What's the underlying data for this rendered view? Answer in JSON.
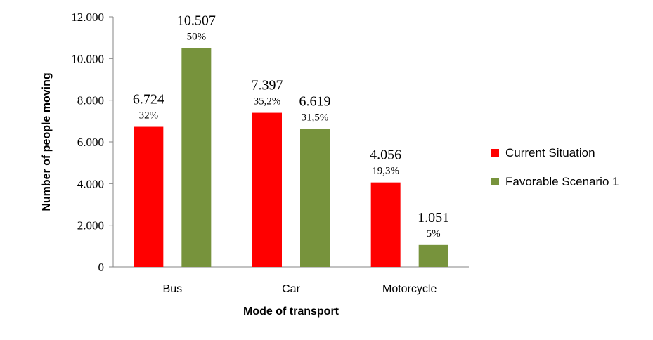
{
  "chart_data": {
    "type": "bar",
    "categories": [
      "Bus",
      "Car",
      "Motorcycle"
    ],
    "series": [
      {
        "name": "Current Situation",
        "color": "#ff0000",
        "values": [
          6724,
          7397,
          4056
        ],
        "value_labels": [
          "6.724",
          "7.397",
          "4.056"
        ],
        "percent_labels": [
          "32%",
          "35,2%",
          "19,3%"
        ]
      },
      {
        "name": "Favorable Scenario 1",
        "color": "#77933c",
        "values": [
          10507,
          6619,
          1051
        ],
        "value_labels": [
          "10.507",
          "6.619",
          "1.051"
        ],
        "percent_labels": [
          "50%",
          "31,5%",
          "5%"
        ]
      }
    ],
    "xlabel": "Mode of transport",
    "ylabel": "Number of people moving",
    "ylim": [
      0,
      12000
    ],
    "yticks": [
      0,
      2000,
      4000,
      6000,
      8000,
      10000,
      12000
    ],
    "ytick_labels": [
      "0",
      "2.000",
      "4.000",
      "6.000",
      "8.000",
      "10.000",
      "12.000"
    ],
    "grid": false,
    "legend": "right"
  }
}
